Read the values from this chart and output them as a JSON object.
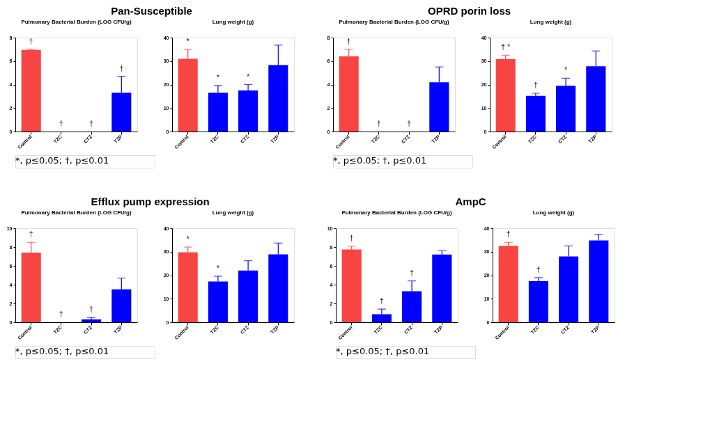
{
  "chart_data": [
    {
      "type": "bar",
      "title": "Pan-Susceptible",
      "subtitle": "Pulmonary Bacterial Burden (LOG CFU/g)",
      "categories": [
        "Control",
        "TZC",
        "CTZ",
        "TZP"
      ],
      "values": [
        6.95,
        0,
        0,
        3.3
      ],
      "colors": [
        "#f94444",
        "#0000ff",
        "#0000ff",
        "#0000ff"
      ],
      "errors": [
        [
          6.95,
          7.0
        ],
        null,
        null,
        [
          3.3,
          4.7
        ]
      ],
      "ylim": [
        0,
        8
      ],
      "yticks": [
        0,
        2,
        4,
        6,
        8
      ],
      "annotations": [
        {
          "text": "†",
          "x": "Control",
          "y": 6.95
        },
        {
          "text": "†",
          "x": "TZC",
          "y": 0
        },
        {
          "text": "†",
          "x": "CTZ",
          "y": 0
        },
        {
          "text": "†",
          "x": "TZP",
          "y": 3.3
        },
        "*, p≤0.05; †, p≤0.01"
      ]
    },
    {
      "type": "bar",
      "subtitle": "Lung weight (g)",
      "categories": [
        "Control",
        "TZC",
        "CTZ",
        "TZP"
      ],
      "values": [
        31,
        16.5,
        17.5,
        28.3
      ],
      "colors": [
        "#f94444",
        "#0000ff",
        "#0000ff",
        "#0000ff"
      ],
      "errors": [
        [
          31,
          35
        ],
        [
          16.5,
          19.6
        ],
        [
          17.5,
          20
        ],
        [
          28.3,
          36.8
        ]
      ],
      "ylim": [
        0,
        40
      ],
      "yticks": [
        0,
        10,
        20,
        30,
        40
      ],
      "annotations": [
        {
          "text": "*",
          "x": "Control",
          "y": 31
        },
        {
          "text": "*",
          "x": "TZC",
          "y": 16.5
        },
        {
          "text": "*",
          "x": "CTZ",
          "y": 17.5
        }
      ]
    },
    {
      "type": "bar",
      "title": "OPRD porin loss",
      "subtitle": "Pulmonary Bacterial Burden (LOG CFU/g)",
      "categories": [
        "Control",
        "TZC",
        "CTZ",
        "TZP"
      ],
      "values": [
        6.4,
        0,
        0,
        4.2
      ],
      "colors": [
        "#f94444",
        "#0000ff",
        "#0000ff",
        "#0000ff"
      ],
      "errors": [
        [
          6.4,
          7.0
        ],
        null,
        null,
        [
          4.2,
          5.5
        ]
      ],
      "ylim": [
        0,
        8
      ],
      "yticks": [
        0,
        2,
        4,
        6,
        8
      ],
      "annotations": [
        {
          "text": "†",
          "x": "Control",
          "y": 6.4
        },
        {
          "text": "†",
          "x": "TZC",
          "y": 0
        },
        {
          "text": "†",
          "x": "CTZ",
          "y": 0
        },
        "*, p≤0.05; †, p≤0.01"
      ]
    },
    {
      "type": "bar",
      "subtitle": "Lung weight (g)",
      "categories": [
        "Control",
        "TZC",
        "CTZ",
        "TZP"
      ],
      "values": [
        30.8,
        15.2,
        19.5,
        27.8
      ],
      "colors": [
        "#f94444",
        "#0000ff",
        "#0000ff",
        "#0000ff"
      ],
      "errors": [
        [
          30.8,
          32.5
        ],
        [
          15.2,
          16.3
        ],
        [
          19.5,
          22.7
        ],
        [
          27.8,
          34.3
        ]
      ],
      "ylim": [
        0,
        40
      ],
      "yticks": [
        0,
        10,
        20,
        30,
        40
      ],
      "annotations": [
        {
          "text": "† *",
          "x": "Control",
          "y": 30.8
        },
        {
          "text": "†",
          "x": "TZC",
          "y": 15.2
        },
        {
          "text": "*",
          "x": "CTZ",
          "y": 19.5
        }
      ]
    },
    {
      "type": "bar",
      "title": "Efflux pump expression",
      "subtitle": "Pulmonary Bacterial Burden (LOG CFU/g)",
      "categories": [
        "Control",
        "TZC",
        "CTZ",
        "TZP"
      ],
      "values": [
        7.4,
        0,
        0.3,
        3.5
      ],
      "colors": [
        "#f94444",
        "#0000ff",
        "#0000ff",
        "#0000ff"
      ],
      "errors": [
        [
          7.4,
          8.5
        ],
        null,
        [
          0.3,
          0.5
        ],
        [
          3.5,
          4.7
        ]
      ],
      "ylim": [
        0,
        10
      ],
      "yticks": [
        0,
        2,
        4,
        6,
        8,
        10
      ],
      "annotations": [
        {
          "text": "†",
          "x": "Control",
          "y": 7.4
        },
        {
          "text": "†",
          "x": "TZC",
          "y": 0
        },
        {
          "text": "†",
          "x": "CTZ",
          "y": 0.3
        },
        "*, p≤0.05; †, p≤0.01"
      ]
    },
    {
      "type": "bar",
      "subtitle": "Lung weight (g)",
      "categories": [
        "Control",
        "TZC",
        "CTZ",
        "TZP"
      ],
      "values": [
        29.8,
        17.3,
        22,
        28.9
      ],
      "colors": [
        "#f94444",
        "#0000ff",
        "#0000ff",
        "#0000ff"
      ],
      "errors": [
        [
          29.8,
          32
        ],
        [
          17.3,
          19.6
        ],
        [
          22,
          26.2
        ],
        [
          28.9,
          33.7
        ]
      ],
      "ylim": [
        0,
        40
      ],
      "yticks": [
        0,
        10,
        20,
        30,
        40
      ],
      "annotations": [
        {
          "text": "*",
          "x": "Control",
          "y": 29.8
        },
        {
          "text": "*",
          "x": "TZC",
          "y": 17.3
        }
      ]
    },
    {
      "type": "bar",
      "title": "AmpC",
      "subtitle": "Pulmonary Bacterial Burden (LOG CFU/g)",
      "categories": [
        "Control",
        "TZC",
        "CTZ",
        "TZP"
      ],
      "values": [
        7.75,
        0.85,
        3.3,
        7.2
      ],
      "colors": [
        "#f94444",
        "#0000ff",
        "#0000ff",
        "#0000ff"
      ],
      "errors": [
        [
          7.75,
          8.1
        ],
        [
          0.85,
          1.4
        ],
        [
          3.3,
          4.4
        ],
        [
          7.2,
          7.6
        ]
      ],
      "ylim": [
        0,
        10
      ],
      "yticks": [
        0,
        2,
        4,
        6,
        8,
        10
      ],
      "annotations": [
        {
          "text": "†",
          "x": "Control",
          "y": 7.75
        },
        {
          "text": "†",
          "x": "TZC",
          "y": 0.85
        },
        {
          "text": "†",
          "x": "CTZ",
          "y": 3.3
        },
        "*, p≤0.05; †, p≤0.01"
      ]
    },
    {
      "type": "bar",
      "subtitle": "Lung weight (g)",
      "categories": [
        "Control",
        "TZC",
        "CTZ",
        "TZP"
      ],
      "values": [
        32.5,
        17.5,
        28,
        34.8
      ],
      "colors": [
        "#f94444",
        "#0000ff",
        "#0000ff",
        "#0000ff"
      ],
      "errors": [
        [
          32.5,
          34
        ],
        [
          17.5,
          19
        ],
        [
          28,
          32.5
        ],
        [
          34.8,
          37.4
        ]
      ],
      "ylim": [
        0,
        40
      ],
      "yticks": [
        0,
        10,
        20,
        30,
        40
      ],
      "annotations": [
        {
          "text": "†",
          "x": "Control",
          "y": 32.5
        },
        {
          "text": "†",
          "x": "TZC",
          "y": 17.5
        }
      ]
    }
  ]
}
